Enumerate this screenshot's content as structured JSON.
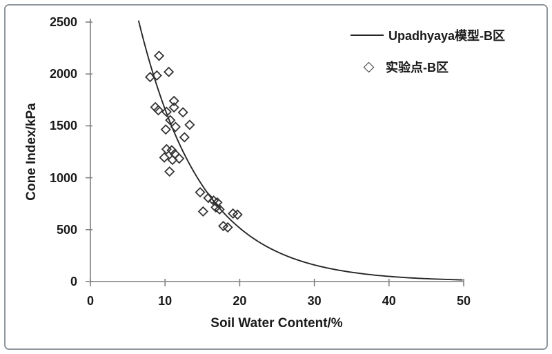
{
  "chart_data": {
    "type": "scatter",
    "title": "",
    "xlabel": "Soil Water Content/%",
    "ylabel": "Cone Index/kPa",
    "xlim": [
      0,
      50
    ],
    "ylim": [
      0,
      2500
    ],
    "x_ticks": [
      0,
      10,
      20,
      30,
      40,
      50
    ],
    "y_ticks": [
      0,
      500,
      1000,
      1500,
      2000,
      2500
    ],
    "grid": false,
    "legend_position": "top-right",
    "series": [
      {
        "name": "Upadhyaya模型-B区",
        "type": "line",
        "model": "CI = a*exp(-b*w)",
        "a": 5350,
        "b": 0.117,
        "x_domain": [
          6.45,
          50
        ]
      },
      {
        "name": "实验点-B区",
        "type": "scatter",
        "marker": "open-diamond",
        "points": [
          [
            8.0,
            1970
          ],
          [
            8.9,
            1985
          ],
          [
            9.2,
            2175
          ],
          [
            10.5,
            2020
          ],
          [
            8.7,
            1680
          ],
          [
            9.1,
            1650
          ],
          [
            10.2,
            1635
          ],
          [
            11.2,
            1740
          ],
          [
            11.2,
            1678
          ],
          [
            12.4,
            1630
          ],
          [
            10.7,
            1555
          ],
          [
            11.4,
            1490
          ],
          [
            10.1,
            1465
          ],
          [
            13.3,
            1510
          ],
          [
            12.6,
            1390
          ],
          [
            10.2,
            1275
          ],
          [
            10.9,
            1265
          ],
          [
            11.3,
            1230
          ],
          [
            9.9,
            1195
          ],
          [
            11.0,
            1172
          ],
          [
            11.9,
            1185
          ],
          [
            10.6,
            1060
          ],
          [
            14.7,
            860
          ],
          [
            15.8,
            805
          ],
          [
            16.5,
            780
          ],
          [
            17.0,
            762
          ],
          [
            16.8,
            715
          ],
          [
            17.3,
            695
          ],
          [
            15.1,
            675
          ],
          [
            19.1,
            655
          ],
          [
            19.7,
            645
          ],
          [
            17.8,
            535
          ],
          [
            18.4,
            522
          ]
        ]
      }
    ]
  },
  "colors": {
    "curve": "#262626",
    "marker": "#333333",
    "axis": "#7f7f7f",
    "text": "#1a1a1a",
    "frame_border": "#8f969c",
    "background": "#ffffff"
  }
}
